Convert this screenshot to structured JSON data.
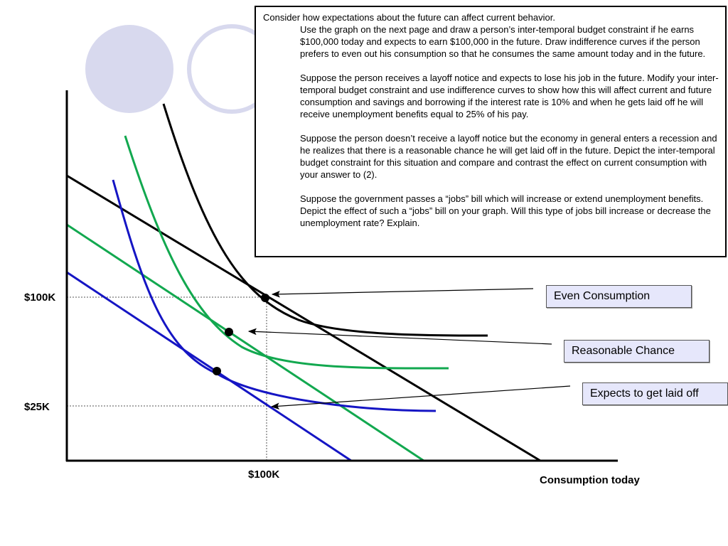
{
  "problem": {
    "intro": "Consider how expectations about the future can affect current behavior.",
    "paragraphs": [
      "Use the graph on the next page and draw a person’s inter-temporal budget constraint if he earns $100,000 today and expects to earn $100,000 in the future. Draw indifference curves if the person prefers to even out his consumption so that he consumes the same amount today and in the future.",
      "Suppose the person receives a layoff notice and expects to lose his job in the future. Modify your inter-temporal budget constraint and use indifference curves to show how this will affect current and future consumption and savings and borrowing if the interest rate is 10% and when he gets laid off he will receive unemployment benefits equal to 25% of his pay.",
      "Suppose the person doesn’t receive a layoff notice but the economy in general enters a recession and he realizes that there is a reasonable chance he will get laid off in the future. Depict the inter-temporal budget constraint for this situation and compare and contrast the effect on current consumption with your answer to (2).",
      "Suppose the government passes a “jobs” bill which will increase or extend unemployment benefits. Depict the effect of such a “jobs” bill on your graph. Will this type of jobs bill increase or decrease the unemployment rate? Explain."
    ]
  },
  "graph": {
    "y_tick_100k": "$100K",
    "y_tick_25k": "$25K",
    "x_tick_100k": "$100K",
    "x_axis_label": "Consumption today"
  },
  "callouts": {
    "even": "Even Consumption",
    "reasonable": "Reasonable Chance",
    "laid_off": "Expects to get laid off"
  },
  "colors": {
    "even_consumption": "#000000",
    "reasonable_chance": "#12a84f",
    "laid_off": "#1515c4",
    "circle_fill": "#d8d9ee"
  }
}
